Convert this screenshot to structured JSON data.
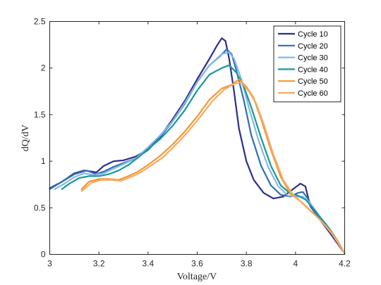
{
  "chart_data": {
    "type": "line",
    "xlabel": "Voltage/V",
    "ylabel": "dQ/dV",
    "xlim": [
      3,
      4.2
    ],
    "ylim": [
      0,
      2.5
    ],
    "xticks": [
      "3",
      "3.2",
      "3.4",
      "3.6",
      "3.8",
      "4",
      "4.2"
    ],
    "yticks": [
      "0",
      "0.5",
      "1",
      "1.5",
      "2",
      "2.5"
    ],
    "grid": false,
    "legend_position": "top-right",
    "series": [
      {
        "name": "Cycle 10",
        "color": "#2b2e8c",
        "points": [
          [
            3.0,
            0.71
          ],
          [
            3.05,
            0.78
          ],
          [
            3.1,
            0.87
          ],
          [
            3.14,
            0.9
          ],
          [
            3.17,
            0.89
          ],
          [
            3.19,
            0.88
          ],
          [
            3.22,
            0.95
          ],
          [
            3.26,
            1.0
          ],
          [
            3.3,
            1.01
          ],
          [
            3.35,
            1.05
          ],
          [
            3.4,
            1.13
          ],
          [
            3.45,
            1.27
          ],
          [
            3.5,
            1.45
          ],
          [
            3.55,
            1.65
          ],
          [
            3.6,
            1.88
          ],
          [
            3.65,
            2.1
          ],
          [
            3.68,
            2.24
          ],
          [
            3.7,
            2.32
          ],
          [
            3.715,
            2.29
          ],
          [
            3.73,
            2.1
          ],
          [
            3.75,
            1.75
          ],
          [
            3.77,
            1.35
          ],
          [
            3.8,
            1.0
          ],
          [
            3.83,
            0.8
          ],
          [
            3.87,
            0.66
          ],
          [
            3.91,
            0.6
          ],
          [
            3.95,
            0.62
          ],
          [
            3.99,
            0.7
          ],
          [
            4.02,
            0.76
          ],
          [
            4.04,
            0.73
          ],
          [
            4.06,
            0.52
          ],
          [
            4.1,
            0.37
          ],
          [
            4.14,
            0.23
          ],
          [
            4.17,
            0.12
          ],
          [
            4.2,
            0.01
          ]
        ]
      },
      {
        "name": "Cycle 20",
        "color": "#2f6fb5",
        "points": [
          [
            3.0,
            0.7
          ],
          [
            3.05,
            0.78
          ],
          [
            3.1,
            0.86
          ],
          [
            3.15,
            0.9
          ],
          [
            3.19,
            0.86
          ],
          [
            3.22,
            0.89
          ],
          [
            3.26,
            0.94
          ],
          [
            3.3,
            0.98
          ],
          [
            3.35,
            1.03
          ],
          [
            3.4,
            1.12
          ],
          [
            3.45,
            1.26
          ],
          [
            3.5,
            1.43
          ],
          [
            3.55,
            1.62
          ],
          [
            3.6,
            1.85
          ],
          [
            3.65,
            2.03
          ],
          [
            3.69,
            2.12
          ],
          [
            3.72,
            2.2
          ],
          [
            3.74,
            2.15
          ],
          [
            3.76,
            1.97
          ],
          [
            3.79,
            1.65
          ],
          [
            3.82,
            1.28
          ],
          [
            3.86,
            0.95
          ],
          [
            3.9,
            0.74
          ],
          [
            3.94,
            0.64
          ],
          [
            3.98,
            0.62
          ],
          [
            4.01,
            0.66
          ],
          [
            4.03,
            0.67
          ],
          [
            4.05,
            0.6
          ],
          [
            4.08,
            0.44
          ],
          [
            4.12,
            0.32
          ],
          [
            4.16,
            0.17
          ],
          [
            4.2,
            0.01
          ]
        ]
      },
      {
        "name": "Cycle 30",
        "color": "#86b8e3",
        "points": [
          [
            3.02,
            0.7
          ],
          [
            3.06,
            0.76
          ],
          [
            3.1,
            0.83
          ],
          [
            3.14,
            0.87
          ],
          [
            3.18,
            0.85
          ],
          [
            3.22,
            0.87
          ],
          [
            3.26,
            0.92
          ],
          [
            3.3,
            0.97
          ],
          [
            3.35,
            1.03
          ],
          [
            3.4,
            1.15
          ],
          [
            3.45,
            1.28
          ],
          [
            3.5,
            1.43
          ],
          [
            3.55,
            1.63
          ],
          [
            3.6,
            1.85
          ],
          [
            3.65,
            2.03
          ],
          [
            3.7,
            2.15
          ],
          [
            3.73,
            2.17
          ],
          [
            3.75,
            2.1
          ],
          [
            3.78,
            1.88
          ],
          [
            3.81,
            1.58
          ],
          [
            3.85,
            1.22
          ],
          [
            3.89,
            0.93
          ],
          [
            3.93,
            0.73
          ],
          [
            3.97,
            0.63
          ],
          [
            4.01,
            0.62
          ],
          [
            4.03,
            0.62
          ],
          [
            4.06,
            0.55
          ],
          [
            4.1,
            0.4
          ],
          [
            4.14,
            0.27
          ],
          [
            4.17,
            0.15
          ],
          [
            4.2,
            0.01
          ]
        ]
      },
      {
        "name": "Cycle 40",
        "color": "#16999b",
        "points": [
          [
            3.05,
            0.7
          ],
          [
            3.08,
            0.76
          ],
          [
            3.12,
            0.82
          ],
          [
            3.16,
            0.84
          ],
          [
            3.2,
            0.84
          ],
          [
            3.24,
            0.86
          ],
          [
            3.28,
            0.9
          ],
          [
            3.32,
            0.96
          ],
          [
            3.36,
            1.04
          ],
          [
            3.4,
            1.13
          ],
          [
            3.45,
            1.24
          ],
          [
            3.5,
            1.38
          ],
          [
            3.55,
            1.55
          ],
          [
            3.6,
            1.76
          ],
          [
            3.65,
            1.93
          ],
          [
            3.7,
            2.0
          ],
          [
            3.73,
            2.03
          ],
          [
            3.76,
            1.95
          ],
          [
            3.79,
            1.8
          ],
          [
            3.82,
            1.58
          ],
          [
            3.86,
            1.25
          ],
          [
            3.9,
            0.95
          ],
          [
            3.94,
            0.74
          ],
          [
            3.98,
            0.65
          ],
          [
            4.01,
            0.63
          ],
          [
            4.04,
            0.59
          ],
          [
            4.07,
            0.5
          ],
          [
            4.1,
            0.4
          ],
          [
            4.14,
            0.27
          ],
          [
            4.17,
            0.15
          ],
          [
            4.2,
            0.01
          ]
        ]
      },
      {
        "name": "Cycle 50",
        "color": "#f29830",
        "points": [
          [
            3.13,
            0.7
          ],
          [
            3.16,
            0.78
          ],
          [
            3.2,
            0.81
          ],
          [
            3.24,
            0.81
          ],
          [
            3.28,
            0.8
          ],
          [
            3.32,
            0.84
          ],
          [
            3.36,
            0.89
          ],
          [
            3.4,
            0.96
          ],
          [
            3.45,
            1.06
          ],
          [
            3.5,
            1.18
          ],
          [
            3.55,
            1.32
          ],
          [
            3.6,
            1.48
          ],
          [
            3.65,
            1.66
          ],
          [
            3.7,
            1.78
          ],
          [
            3.74,
            1.82
          ],
          [
            3.77,
            1.88
          ],
          [
            3.8,
            1.8
          ],
          [
            3.83,
            1.68
          ],
          [
            3.86,
            1.45
          ],
          [
            3.9,
            1.12
          ],
          [
            3.94,
            0.83
          ],
          [
            3.98,
            0.65
          ],
          [
            4.02,
            0.57
          ],
          [
            4.06,
            0.47
          ],
          [
            4.1,
            0.37
          ],
          [
            4.14,
            0.26
          ],
          [
            4.17,
            0.15
          ],
          [
            4.2,
            0.01
          ]
        ]
      },
      {
        "name": "Cycle 60",
        "color": "#f7a964",
        "points": [
          [
            3.13,
            0.68
          ],
          [
            3.17,
            0.77
          ],
          [
            3.21,
            0.8
          ],
          [
            3.25,
            0.8
          ],
          [
            3.29,
            0.79
          ],
          [
            3.33,
            0.83
          ],
          [
            3.37,
            0.88
          ],
          [
            3.41,
            0.95
          ],
          [
            3.46,
            1.04
          ],
          [
            3.51,
            1.17
          ],
          [
            3.56,
            1.31
          ],
          [
            3.61,
            1.47
          ],
          [
            3.66,
            1.64
          ],
          [
            3.71,
            1.77
          ],
          [
            3.75,
            1.83
          ],
          [
            3.78,
            1.85
          ],
          [
            3.81,
            1.75
          ],
          [
            3.84,
            1.62
          ],
          [
            3.87,
            1.4
          ],
          [
            3.91,
            1.07
          ],
          [
            3.95,
            0.8
          ],
          [
            3.99,
            0.64
          ],
          [
            4.03,
            0.55
          ],
          [
            4.07,
            0.45
          ],
          [
            4.11,
            0.34
          ],
          [
            4.15,
            0.22
          ],
          [
            4.2,
            0.01
          ]
        ]
      }
    ]
  }
}
